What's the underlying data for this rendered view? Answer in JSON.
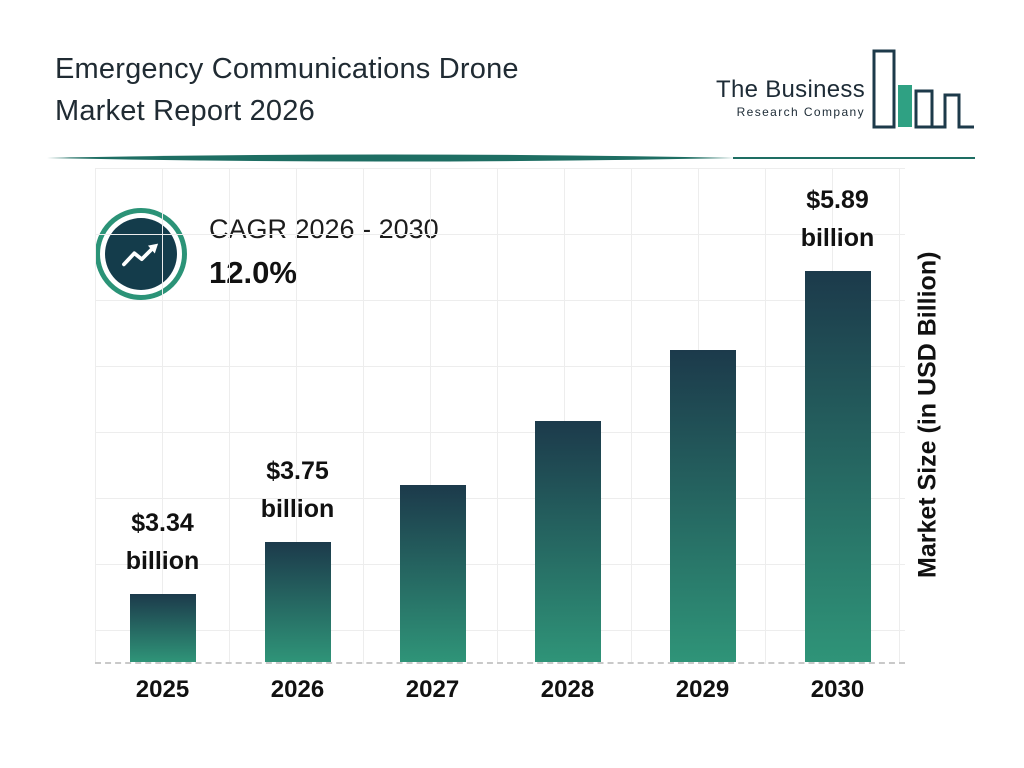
{
  "header": {
    "title_line1": "Emergency Communications Drone",
    "title_line2": "Market Report 2026",
    "logo": {
      "name": "The Business",
      "subtitle": "Research Company"
    }
  },
  "cagr": {
    "label": "CAGR 2026 - 2030",
    "value": "12.0%"
  },
  "chart_data": {
    "type": "bar",
    "title": "Emergency Communications Drone Market Report 2026",
    "categories": [
      "2025",
      "2026",
      "2027",
      "2028",
      "2029",
      "2030"
    ],
    "values": [
      3.34,
      3.75,
      4.2,
      4.7,
      5.26,
      5.89
    ],
    "bar_labels": [
      {
        "amount": "$3.34",
        "unit": "billion"
      },
      {
        "amount": "$3.75",
        "unit": "billion"
      },
      null,
      null,
      null,
      {
        "amount": "$5.89",
        "unit": "billion"
      }
    ],
    "xlabel": "",
    "ylabel": "Market Size (in USD Billion)",
    "ylim": [
      2.8,
      6.7
    ],
    "grid": true,
    "legend": false,
    "colors": {
      "bar_gradient_top": "#1c3a4b",
      "bar_gradient_bottom": "#2f9478",
      "accent_teal": "#1e6e63",
      "badge_ring": "#2b9377",
      "badge_fill": "#143c4b",
      "gridline": "#ededed",
      "text": "#111111"
    }
  }
}
